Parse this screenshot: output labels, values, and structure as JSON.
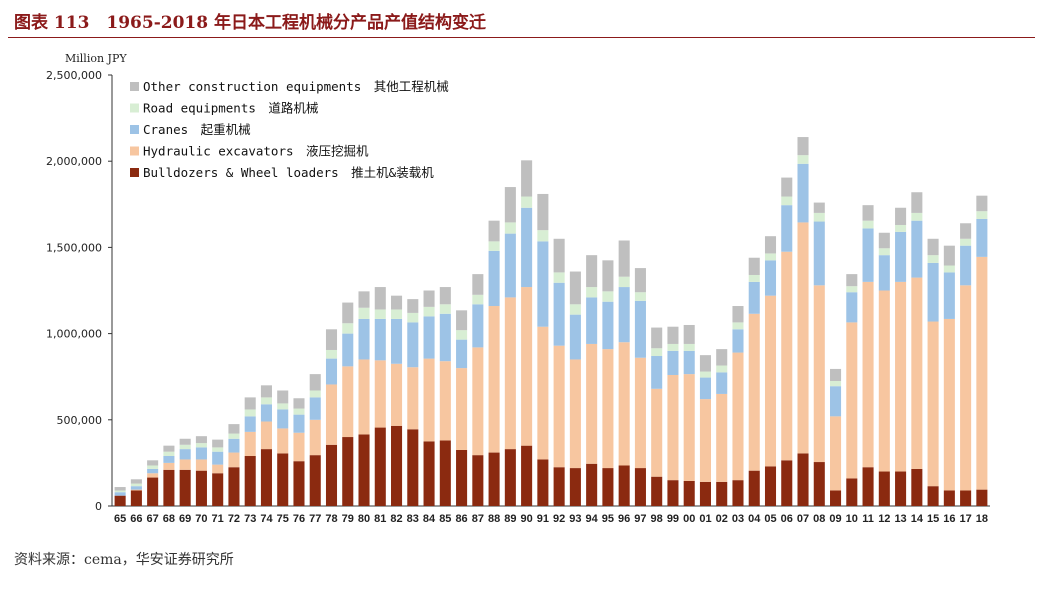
{
  "page": {
    "title": "图表 113　1965-2018 年日本工程机械分产品产值结构变迁",
    "source": "资料来源：cema，华安证券研究所"
  },
  "chart_data": {
    "type": "bar",
    "stacked": true,
    "unit": "Million JPY",
    "ylim": [
      0,
      2500000
    ],
    "yticks": [
      "0",
      "500,000",
      "1,000,000",
      "1,500,000",
      "2,000,000",
      "2,500,000"
    ],
    "ytick_values": [
      0,
      500000,
      1000000,
      1500000,
      2000000,
      2500000
    ],
    "legend_position": "top-left",
    "grid": false,
    "categories": [
      "65",
      "66",
      "67",
      "68",
      "69",
      "70",
      "71",
      "72",
      "73",
      "74",
      "75",
      "76",
      "77",
      "78",
      "79",
      "80",
      "81",
      "82",
      "83",
      "84",
      "85",
      "86",
      "87",
      "88",
      "89",
      "90",
      "91",
      "92",
      "93",
      "94",
      "95",
      "96",
      "97",
      "98",
      "99",
      "00",
      "01",
      "02",
      "03",
      "04",
      "05",
      "06",
      "07",
      "08",
      "09",
      "10",
      "11",
      "12",
      "13",
      "14",
      "15",
      "16",
      "17",
      "18"
    ],
    "series": [
      {
        "name": "Bulldozers & Wheel loaders　推土机&装载机",
        "color": "#8B2A10",
        "values": [
          60000,
          90000,
          165000,
          210000,
          210000,
          205000,
          190000,
          225000,
          290000,
          330000,
          305000,
          260000,
          295000,
          355000,
          400000,
          415000,
          455000,
          465000,
          445000,
          375000,
          380000,
          325000,
          295000,
          310000,
          330000,
          350000,
          270000,
          225000,
          220000,
          245000,
          220000,
          235000,
          220000,
          170000,
          150000,
          145000,
          140000,
          140000,
          150000,
          205000,
          230000,
          265000,
          305000,
          255000,
          90000,
          160000,
          225000,
          200000,
          200000,
          215000,
          115000,
          90000,
          90000,
          95000
        ]
      },
      {
        "name": "Hydraulic excavators　液压挖掘机",
        "color": "#F7C6A0",
        "values": [
          0,
          5000,
          25000,
          40000,
          60000,
          65000,
          50000,
          85000,
          140000,
          160000,
          145000,
          165000,
          205000,
          350000,
          410000,
          435000,
          390000,
          360000,
          360000,
          480000,
          460000,
          475000,
          625000,
          850000,
          880000,
          920000,
          770000,
          705000,
          630000,
          695000,
          690000,
          715000,
          640000,
          510000,
          610000,
          620000,
          480000,
          510000,
          740000,
          910000,
          990000,
          1210000,
          1340000,
          1025000,
          430000,
          905000,
          1075000,
          1050000,
          1100000,
          1110000,
          955000,
          995000,
          1190000,
          1350000
        ]
      },
      {
        "name": "Cranes　起重机械",
        "color": "#9DC3E6",
        "values": [
          20000,
          20000,
          25000,
          40000,
          60000,
          70000,
          75000,
          80000,
          90000,
          100000,
          110000,
          105000,
          130000,
          150000,
          190000,
          235000,
          240000,
          260000,
          260000,
          245000,
          275000,
          165000,
          250000,
          320000,
          370000,
          460000,
          495000,
          365000,
          260000,
          270000,
          275000,
          320000,
          330000,
          190000,
          140000,
          135000,
          125000,
          125000,
          135000,
          185000,
          205000,
          270000,
          340000,
          370000,
          175000,
          175000,
          310000,
          205000,
          290000,
          330000,
          340000,
          270000,
          230000,
          220000
        ]
      },
      {
        "name": "Road equipments　道路机械",
        "color": "#D8EED4",
        "values": [
          10000,
          15000,
          20000,
          25000,
          25000,
          25000,
          25000,
          30000,
          40000,
          40000,
          35000,
          35000,
          40000,
          50000,
          60000,
          65000,
          55000,
          55000,
          55000,
          55000,
          55000,
          55000,
          55000,
          55000,
          65000,
          65000,
          65000,
          60000,
          60000,
          60000,
          60000,
          60000,
          50000,
          45000,
          40000,
          40000,
          35000,
          40000,
          40000,
          40000,
          40000,
          50000,
          50000,
          50000,
          30000,
          35000,
          45000,
          40000,
          40000,
          45000,
          45000,
          40000,
          40000,
          45000
        ]
      },
      {
        "name": "Other construction equipments　其他工程机械",
        "color": "#BFBFBF",
        "values": [
          20000,
          25000,
          30000,
          35000,
          35000,
          40000,
          45000,
          55000,
          70000,
          70000,
          75000,
          60000,
          95000,
          120000,
          120000,
          95000,
          130000,
          80000,
          80000,
          95000,
          100000,
          115000,
          120000,
          120000,
          205000,
          210000,
          210000,
          195000,
          190000,
          185000,
          180000,
          210000,
          140000,
          120000,
          100000,
          110000,
          95000,
          95000,
          95000,
          100000,
          100000,
          110000,
          105000,
          60000,
          70000,
          70000,
          90000,
          90000,
          100000,
          120000,
          95000,
          115000,
          90000,
          90000
        ]
      }
    ]
  }
}
